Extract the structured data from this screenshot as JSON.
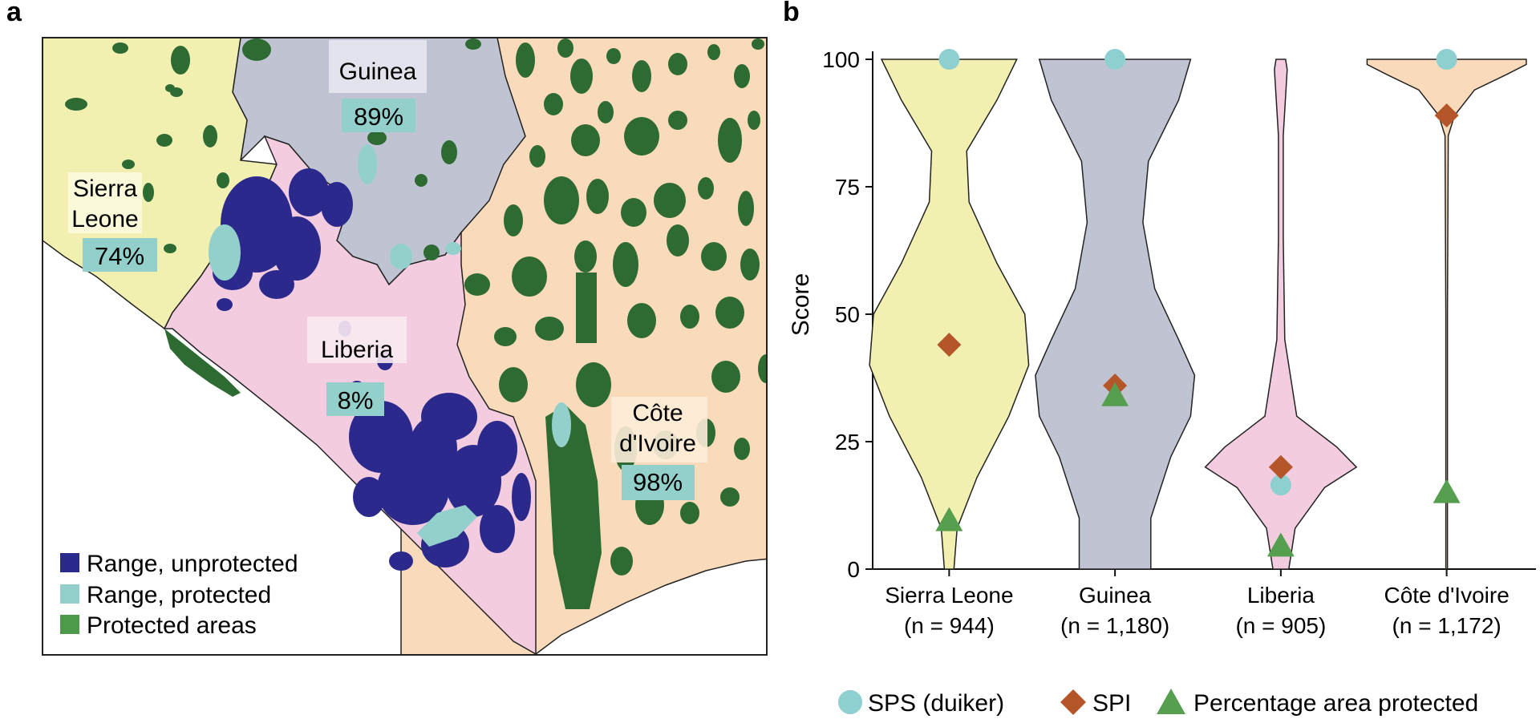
{
  "panel_a": {
    "letter": "a",
    "countries": [
      {
        "name": "Guinea",
        "pct": "89%"
      },
      {
        "name": "Sierra Leone",
        "name_lines": [
          "Sierra",
          "Leone"
        ],
        "pct": "74%"
      },
      {
        "name": "Liberia",
        "pct": "8%"
      },
      {
        "name": "Côte d'Ivoire",
        "name_lines": [
          "Côte",
          "d'Ivoire"
        ],
        "pct": "98%"
      }
    ],
    "legend": [
      {
        "label": "Range, unprotected",
        "color": "#2b2a8c"
      },
      {
        "label": "Range, protected",
        "color": "#93d0cc"
      },
      {
        "label": "Protected areas",
        "color": "#4e9a4a"
      }
    ],
    "colors": {
      "sierra_leone": "#f1f0b0",
      "guinea": "#c0c4d2",
      "liberia": "#f3cce0",
      "cote_divoire": "#f9dbbb",
      "forest": "#2e6b33",
      "range_unprotected": "#2b2a8c",
      "range_protected": "#93d0cc"
    }
  },
  "chart_data": {
    "type": "violin",
    "panel_letter": "b",
    "ylabel": "Score",
    "ylim": [
      0,
      100
    ],
    "yticks": [
      0,
      25,
      50,
      75,
      100
    ],
    "categories": [
      {
        "label": "Sierra Leone",
        "n": "(n = 944)",
        "color": "#f1f0b0"
      },
      {
        "label": "Guinea",
        "n": "(n = 1,180)",
        "color": "#c0c4d2"
      },
      {
        "label": "Liberia",
        "n": "(n = 905)",
        "color": "#f3cce0"
      },
      {
        "label": "Côte d'Ivoire",
        "n": "(n = 1,172)",
        "color": "#f9dbbb"
      }
    ],
    "series": [
      {
        "name": "SPS (duiker)",
        "marker": "circle",
        "color": "#8ecfcf",
        "values": [
          100,
          100,
          16.5,
          100
        ]
      },
      {
        "name": "SPI",
        "marker": "diamond",
        "color": "#b5562a",
        "values": [
          44,
          36,
          20,
          89
        ]
      },
      {
        "name": "Percentage area protected",
        "marker": "triangle",
        "color": "#559f4f",
        "values": [
          9.5,
          34,
          4.5,
          15
        ]
      }
    ]
  }
}
